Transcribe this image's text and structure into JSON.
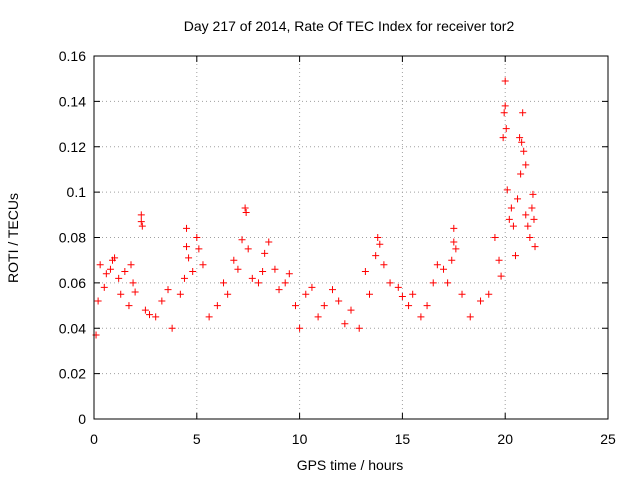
{
  "chart_data": {
    "type": "scatter",
    "title": "Day 217 of 2014, Rate Of TEC Index for receiver tor2",
    "xlabel": "GPS time / hours",
    "ylabel": "ROTI / TECUs",
    "xlim": [
      0,
      25
    ],
    "ylim": [
      0,
      0.16
    ],
    "x_ticks": [
      "0",
      "5",
      "10",
      "15",
      "20",
      "25"
    ],
    "y_ticks": [
      "0",
      "0.02",
      "0.04",
      "0.06",
      "0.08",
      "0.1",
      "0.12",
      "0.14",
      "0.16"
    ],
    "x_tick_values": [
      0,
      5,
      10,
      15,
      20,
      25
    ],
    "y_tick_values": [
      0,
      0.02,
      0.04,
      0.06,
      0.08,
      0.1,
      0.12,
      0.14,
      0.16
    ],
    "grid": true,
    "marker": "plus",
    "color": "#ff0000",
    "series": [
      {
        "name": "",
        "points": [
          [
            0.1,
            0.037
          ],
          [
            0.2,
            0.052
          ],
          [
            0.3,
            0.068
          ],
          [
            0.5,
            0.058
          ],
          [
            0.6,
            0.064
          ],
          [
            0.8,
            0.066
          ],
          [
            0.9,
            0.07
          ],
          [
            1.0,
            0.071
          ],
          [
            1.2,
            0.062
          ],
          [
            1.3,
            0.055
          ],
          [
            1.5,
            0.065
          ],
          [
            1.7,
            0.05
          ],
          [
            1.8,
            0.068
          ],
          [
            1.9,
            0.06
          ],
          [
            2.0,
            0.056
          ],
          [
            2.3,
            0.09
          ],
          [
            2.3,
            0.087
          ],
          [
            2.35,
            0.085
          ],
          [
            2.5,
            0.048
          ],
          [
            2.7,
            0.046
          ],
          [
            3.0,
            0.045
          ],
          [
            3.3,
            0.052
          ],
          [
            3.6,
            0.057
          ],
          [
            3.8,
            0.04
          ],
          [
            4.2,
            0.055
          ],
          [
            4.4,
            0.062
          ],
          [
            4.5,
            0.084
          ],
          [
            4.5,
            0.076
          ],
          [
            4.6,
            0.071
          ],
          [
            4.8,
            0.065
          ],
          [
            5.0,
            0.08
          ],
          [
            5.1,
            0.075
          ],
          [
            5.3,
            0.068
          ],
          [
            5.6,
            0.045
          ],
          [
            6.0,
            0.05
          ],
          [
            6.3,
            0.06
          ],
          [
            6.5,
            0.055
          ],
          [
            6.8,
            0.07
          ],
          [
            7.0,
            0.066
          ],
          [
            7.2,
            0.079
          ],
          [
            7.35,
            0.093
          ],
          [
            7.4,
            0.091
          ],
          [
            7.5,
            0.075
          ],
          [
            7.7,
            0.062
          ],
          [
            8.0,
            0.06
          ],
          [
            8.2,
            0.065
          ],
          [
            8.3,
            0.073
          ],
          [
            8.5,
            0.078
          ],
          [
            8.8,
            0.066
          ],
          [
            9.0,
            0.057
          ],
          [
            9.3,
            0.06
          ],
          [
            9.5,
            0.064
          ],
          [
            9.8,
            0.05
          ],
          [
            10.0,
            0.04
          ],
          [
            10.3,
            0.055
          ],
          [
            10.6,
            0.058
          ],
          [
            10.9,
            0.045
          ],
          [
            11.2,
            0.05
          ],
          [
            11.6,
            0.057
          ],
          [
            11.9,
            0.052
          ],
          [
            12.2,
            0.042
          ],
          [
            12.5,
            0.048
          ],
          [
            12.9,
            0.04
          ],
          [
            13.2,
            0.065
          ],
          [
            13.4,
            0.055
          ],
          [
            13.7,
            0.072
          ],
          [
            13.8,
            0.08
          ],
          [
            13.9,
            0.077
          ],
          [
            14.1,
            0.068
          ],
          [
            14.4,
            0.06
          ],
          [
            14.8,
            0.058
          ],
          [
            15.0,
            0.054
          ],
          [
            15.3,
            0.05
          ],
          [
            15.5,
            0.055
          ],
          [
            15.9,
            0.045
          ],
          [
            16.2,
            0.05
          ],
          [
            16.5,
            0.06
          ],
          [
            16.7,
            0.068
          ],
          [
            17.0,
            0.066
          ],
          [
            17.2,
            0.06
          ],
          [
            17.4,
            0.07
          ],
          [
            17.5,
            0.084
          ],
          [
            17.5,
            0.078
          ],
          [
            17.6,
            0.075
          ],
          [
            17.9,
            0.055
          ],
          [
            18.3,
            0.045
          ],
          [
            18.8,
            0.052
          ],
          [
            19.2,
            0.055
          ],
          [
            19.5,
            0.08
          ],
          [
            19.7,
            0.07
          ],
          [
            19.8,
            0.063
          ],
          [
            19.9,
            0.124
          ],
          [
            19.95,
            0.135
          ],
          [
            20.0,
            0.149
          ],
          [
            20.0,
            0.138
          ],
          [
            20.05,
            0.128
          ],
          [
            20.1,
            0.101
          ],
          [
            20.2,
            0.088
          ],
          [
            20.3,
            0.093
          ],
          [
            20.4,
            0.085
          ],
          [
            20.5,
            0.072
          ],
          [
            20.6,
            0.097
          ],
          [
            20.7,
            0.124
          ],
          [
            20.75,
            0.108
          ],
          [
            20.8,
            0.122
          ],
          [
            20.85,
            0.135
          ],
          [
            20.9,
            0.118
          ],
          [
            21.0,
            0.112
          ],
          [
            21.0,
            0.09
          ],
          [
            21.1,
            0.085
          ],
          [
            21.2,
            0.08
          ],
          [
            21.3,
            0.093
          ],
          [
            21.35,
            0.099
          ],
          [
            21.4,
            0.088
          ],
          [
            21.45,
            0.076
          ]
        ]
      }
    ]
  }
}
